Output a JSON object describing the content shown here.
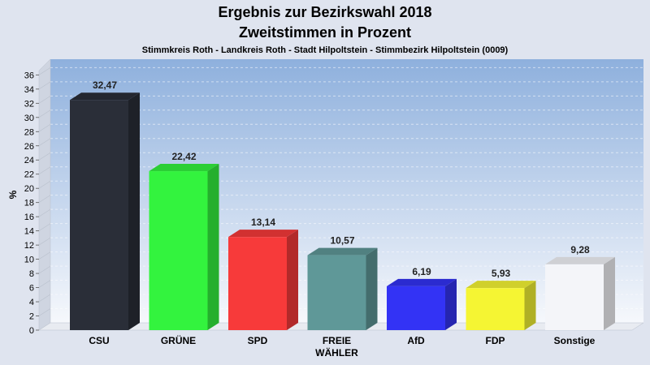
{
  "chart_data": {
    "type": "bar",
    "title": "Ergebnis zur Bezirkswahl 2018",
    "title2": "Zweitstimmen in Prozent",
    "subtitle": "Stimmkreis Roth - Landkreis Roth - Stadt Hilpoltstein - Stimmbezirk Hilpoltstein (0009)",
    "ylabel": "%",
    "xlabel": "",
    "ylim": [
      0,
      36
    ],
    "yticks": [
      "0",
      "2",
      "4",
      "6",
      "8",
      "10",
      "12",
      "14",
      "16",
      "18",
      "20",
      "22",
      "24",
      "26",
      "28",
      "30",
      "32",
      "34",
      "36"
    ],
    "grid": true,
    "categories": [
      {
        "line1": "CSU",
        "line2": ""
      },
      {
        "line1": "GRÜNE",
        "line2": ""
      },
      {
        "line1": "SPD",
        "line2": ""
      },
      {
        "line1": "FREIE",
        "line2": "WÄHLER"
      },
      {
        "line1": "AfD",
        "line2": ""
      },
      {
        "line1": "FDP",
        "line2": ""
      },
      {
        "line1": "Sonstige",
        "line2": ""
      }
    ],
    "values": [
      32.47,
      22.42,
      13.14,
      10.57,
      6.19,
      5.93,
      9.28
    ],
    "value_labels": [
      "32,47",
      "22,42",
      "13,14",
      "10,57",
      "6,19",
      "5,93",
      "9,28"
    ],
    "colors": [
      "#2a2e38",
      "#33f33e",
      "#f73a3a",
      "#5f9898",
      "#3333f5",
      "#f5f533",
      "#f4f5f9"
    ]
  }
}
